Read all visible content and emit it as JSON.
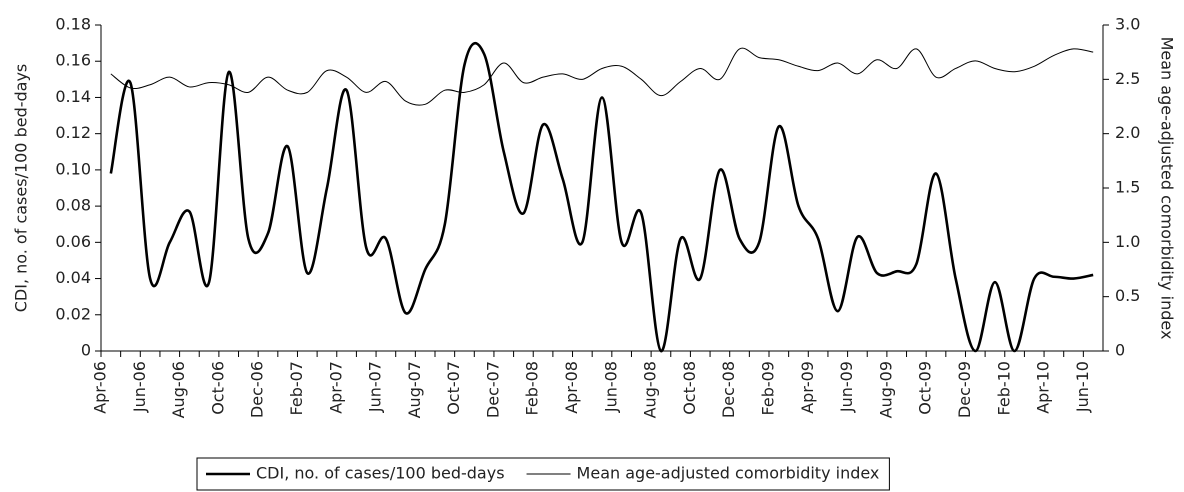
{
  "chart_data": {
    "type": "line",
    "y_label": "CDI, no. of cases/100 bed-days",
    "y2_label": "Mean age-adjusted comorbidity index",
    "categories": [
      "Apr-06",
      null,
      "Jun-06",
      null,
      "Aug-06",
      null,
      "Oct-06",
      null,
      "Dec-06",
      null,
      "Feb-07",
      null,
      "Apr-07",
      null,
      "Jun-07",
      null,
      "Aug-07",
      null,
      "Oct-07",
      null,
      "Dec-07",
      null,
      "Feb-08",
      null,
      "Apr-08",
      null,
      "Jun-08",
      null,
      "Aug-08",
      null,
      "Oct-08",
      null,
      "Dec-08",
      null,
      "Feb-09",
      null,
      "Apr-09",
      null,
      "Jun-09",
      null,
      "Aug-09",
      null,
      "Oct-09",
      null,
      "Dec-09",
      null,
      "Feb-10",
      null,
      "Apr-10",
      null,
      "Jun-10"
    ],
    "series": [
      {
        "name": "CDI, no. of cases/100 bed-days",
        "color": "#000000",
        "line_width": 2.6,
        "values": [
          0.098,
          0.148,
          0.04,
          0.06,
          0.077,
          0.038,
          0.154,
          0.062,
          0.065,
          0.113,
          0.043,
          0.09,
          0.144,
          0.057,
          0.062,
          0.021,
          0.045,
          0.07,
          0.158,
          0.164,
          0.11,
          0.076,
          0.125,
          0.095,
          0.06,
          0.14,
          0.06,
          0.076,
          0.0,
          0.062,
          0.04,
          0.1,
          0.062,
          0.06,
          0.124,
          0.08,
          0.062,
          0.022,
          0.063,
          0.043,
          0.044,
          0.048,
          0.098,
          0.04,
          0.0,
          0.038,
          0.0,
          0.04,
          0.041,
          0.04,
          0.042
        ]
      },
      {
        "name": "Mean age-adjusted comorbidity index",
        "color": "#000000",
        "line_width": 1,
        "axis": "y2",
        "values": [
          2.55,
          2.42,
          2.45,
          2.52,
          2.43,
          2.47,
          2.45,
          2.38,
          2.52,
          2.4,
          2.38,
          2.58,
          2.52,
          2.38,
          2.48,
          2.3,
          2.27,
          2.4,
          2.38,
          2.45,
          2.65,
          2.47,
          2.52,
          2.55,
          2.5,
          2.6,
          2.62,
          2.5,
          2.35,
          2.48,
          2.6,
          2.5,
          2.78,
          2.7,
          2.68,
          2.62,
          2.58,
          2.65,
          2.55,
          2.68,
          2.6,
          2.78,
          2.52,
          2.6,
          2.67,
          2.6,
          2.57,
          2.62,
          2.72,
          2.78,
          2.75
        ]
      }
    ],
    "ylim": [
      0,
      0.18
    ],
    "yticks": [
      0,
      0.02,
      0.04,
      0.06,
      0.08,
      {
        "value": 0.1,
        "label": "0.10"
      },
      0.12,
      0.14,
      0.16,
      0.18
    ],
    "y2lim": [
      0,
      3.0
    ],
    "y2ticks": [
      0,
      0.5,
      {
        "value": 1,
        "label": "1.0"
      },
      1.5,
      {
        "value": 2,
        "label": "2.0"
      },
      2.5,
      {
        "value": 3,
        "label": "3.0"
      }
    ],
    "legend": "bottom"
  }
}
